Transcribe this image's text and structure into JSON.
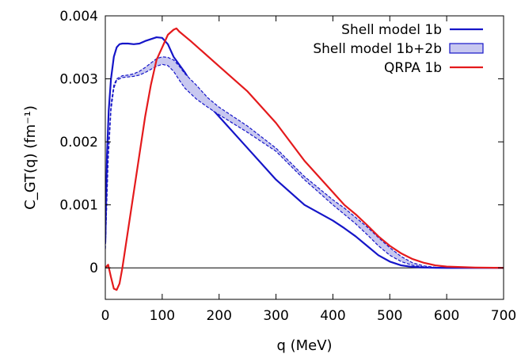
{
  "chart_data": {
    "type": "line",
    "xlabel": "q (MeV)",
    "ylabel": "C_GT(q) (fm⁻¹)",
    "xlim": [
      0,
      700
    ],
    "ylim": [
      -0.0005,
      0.004
    ],
    "x_ticks": [
      0,
      100,
      200,
      300,
      400,
      500,
      600,
      700
    ],
    "y_ticks": [
      0,
      0.001,
      0.002,
      0.003,
      0.004
    ],
    "x_tick_labels": [
      "0",
      "100",
      "200",
      "300",
      "400",
      "500",
      "600",
      "700"
    ],
    "y_tick_labels": [
      "0",
      "0.001",
      "0.002",
      "0.003",
      "0.004"
    ],
    "grid": false,
    "legend_position": "top-right",
    "zero_line": true,
    "series": [
      {
        "name": "Shell model 1b",
        "style": "line",
        "color": "#1515c8",
        "x": [
          0,
          3,
          6,
          10,
          15,
          20,
          25,
          30,
          40,
          50,
          60,
          70,
          80,
          90,
          100,
          110,
          120,
          140,
          160,
          180,
          200,
          250,
          300,
          350,
          400,
          420,
          440,
          460,
          480,
          500,
          520,
          540,
          560,
          580,
          600,
          650,
          700
        ],
        "y": [
          0.0004,
          0.0018,
          0.0025,
          0.003,
          0.00335,
          0.0035,
          0.00355,
          0.00356,
          0.00356,
          0.00355,
          0.00356,
          0.0036,
          0.00363,
          0.00366,
          0.00365,
          0.00355,
          0.00335,
          0.0031,
          0.0028,
          0.0026,
          0.0024,
          0.0019,
          0.0014,
          0.001,
          0.00075,
          0.00063,
          0.0005,
          0.00035,
          0.0002,
          0.0001,
          4e-05,
          1.5e-05,
          5e-06,
          1e-06,
          0.0,
          0.0,
          0.0
        ]
      },
      {
        "name": "Shell model 1b+2b",
        "style": "band",
        "color": "#1515c8",
        "fill": "#c8c8f0",
        "x": [
          0,
          5,
          10,
          15,
          20,
          30,
          40,
          50,
          60,
          70,
          80,
          90,
          100,
          110,
          120,
          130,
          140,
          160,
          180,
          200,
          250,
          300,
          350,
          400,
          420,
          440,
          460,
          480,
          500,
          520,
          540,
          560,
          580,
          600,
          650,
          700
        ],
        "y_upper": [
          0.0003,
          0.0018,
          0.0026,
          0.0029,
          0.003,
          0.00305,
          0.00306,
          0.00308,
          0.00312,
          0.00318,
          0.00325,
          0.00332,
          0.00335,
          0.00334,
          0.0033,
          0.0032,
          0.00308,
          0.0029,
          0.0027,
          0.00255,
          0.00225,
          0.0019,
          0.00145,
          0.00108,
          0.00095,
          0.0008,
          0.00065,
          0.00048,
          0.00032,
          0.00018,
          8e-05,
          3e-05,
          1e-05,
          3e-06,
          0.0,
          0.0
        ],
        "y_lower": [
          0.0003,
          0.0017,
          0.0025,
          0.00285,
          0.00298,
          0.00302,
          0.00303,
          0.00304,
          0.00306,
          0.0031,
          0.00315,
          0.0032,
          0.00323,
          0.00321,
          0.00312,
          0.00298,
          0.00285,
          0.00268,
          0.00255,
          0.00243,
          0.00215,
          0.00185,
          0.0014,
          0.001,
          0.00085,
          0.0007,
          0.00053,
          0.00035,
          0.0002,
          0.0001,
          4e-05,
          1.5e-05,
          5e-06,
          1e-06,
          0.0,
          0.0
        ]
      },
      {
        "name": "QRPA 1b",
        "style": "line",
        "color": "#e41a1c",
        "x": [
          0,
          5,
          10,
          15,
          20,
          25,
          30,
          40,
          50,
          60,
          70,
          80,
          90,
          100,
          110,
          120,
          125,
          130,
          150,
          200,
          250,
          300,
          350,
          400,
          420,
          440,
          460,
          480,
          500,
          520,
          540,
          560,
          580,
          600,
          650,
          700
        ],
        "y": [
          0.0,
          5e-05,
          -0.00015,
          -0.00033,
          -0.00035,
          -0.00025,
          0.0,
          0.0006,
          0.0012,
          0.0018,
          0.0024,
          0.0029,
          0.0033,
          0.0035,
          0.0037,
          0.00378,
          0.0038,
          0.00375,
          0.0036,
          0.0032,
          0.0028,
          0.0023,
          0.0017,
          0.0012,
          0.001,
          0.00085,
          0.00068,
          0.0005,
          0.00035,
          0.00023,
          0.00014,
          8e-05,
          4e-05,
          2e-05,
          5e-06,
          0.0
        ]
      }
    ]
  }
}
